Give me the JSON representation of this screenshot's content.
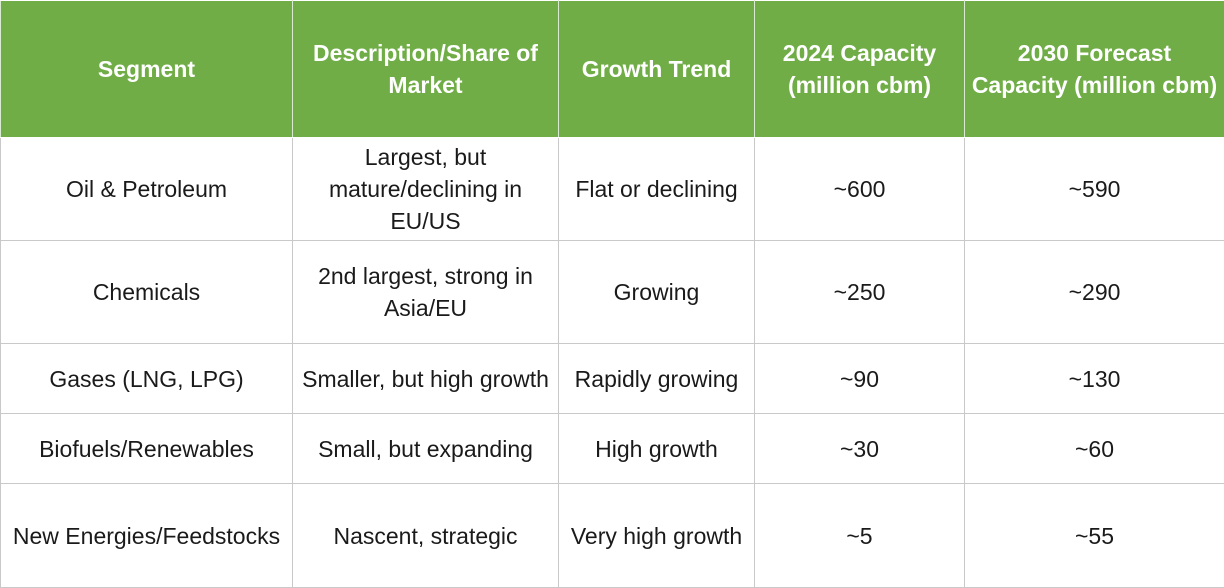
{
  "table": {
    "headers": [
      "Segment",
      "Description/Share of Market",
      "Growth Trend",
      "2024 Capacity (million cbm)",
      "2030 Forecast Capacity (million cbm)"
    ],
    "rows": [
      {
        "segment": "Oil & Petroleum",
        "description": "Largest, but mature/declining in EU/US",
        "growth_trend": "Flat or declining",
        "capacity_2024": "~600",
        "capacity_2030": "~590"
      },
      {
        "segment": "Chemicals",
        "description": "2nd largest, strong in Asia/EU",
        "growth_trend": "Growing",
        "capacity_2024": "~250",
        "capacity_2030": "~290"
      },
      {
        "segment": "Gases (LNG, LPG)",
        "description": "Smaller, but high growth",
        "growth_trend": "Rapidly growing",
        "capacity_2024": "~90",
        "capacity_2030": "~130"
      },
      {
        "segment": "Biofuels/Renewables",
        "description": "Small, but expanding",
        "growth_trend": "High growth",
        "capacity_2024": "~30",
        "capacity_2030": "~60"
      },
      {
        "segment": "New Energies/Feedstocks",
        "description": "Nascent, strategic",
        "growth_trend": "Very high growth",
        "capacity_2024": "~5",
        "capacity_2030": "~55"
      }
    ]
  },
  "colors": {
    "header_background": "#70ad47",
    "header_text": "#ffffff",
    "grid_line": "#c9c9c9",
    "body_text": "#1a1a1a"
  }
}
